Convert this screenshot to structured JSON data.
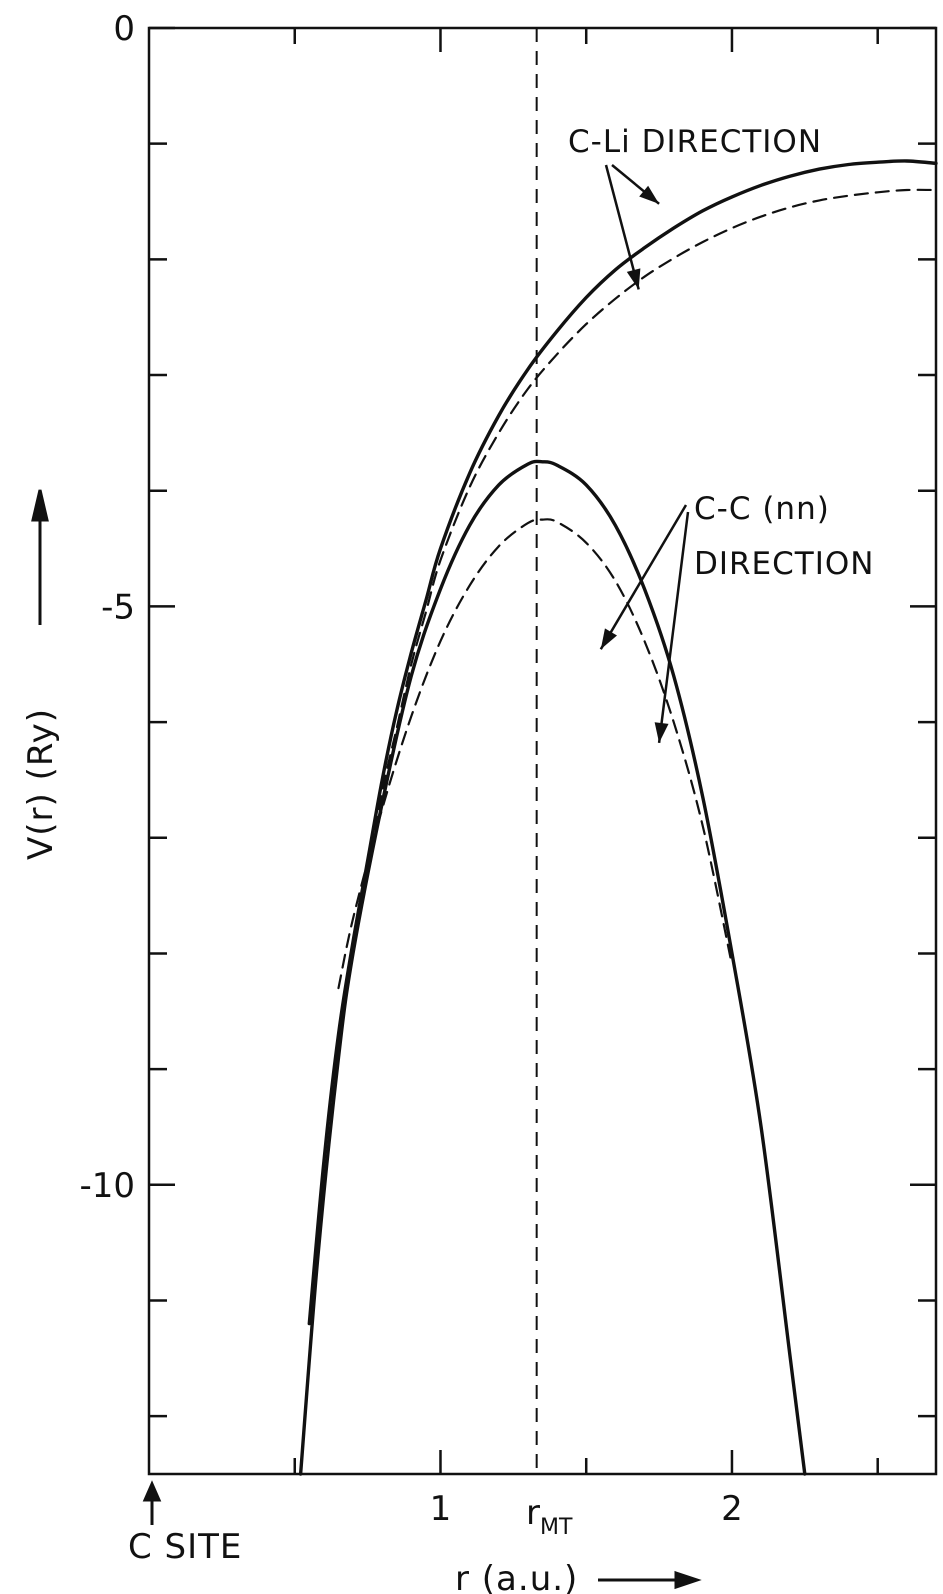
{
  "chart_data": {
    "type": "line",
    "title": "",
    "xlabel": "r (a.u.)",
    "ylabel": "V(r)    (Ry)",
    "xlim": [
      0,
      2.7
    ],
    "ylim": [
      -12.5,
      0
    ],
    "x_ticks": [
      1,
      2
    ],
    "x_tick_labels": [
      "1",
      "2"
    ],
    "x_minor_ticks": [
      0.5,
      1.5,
      2.5
    ],
    "y_ticks": [
      0,
      -5,
      -10
    ],
    "y_tick_labels": [
      "0",
      "-5",
      "-10"
    ],
    "y_minor_ticks": [
      -1,
      -2,
      -3,
      -4,
      -6,
      -7,
      -8,
      -9,
      -11,
      -12
    ],
    "rmt": 1.33,
    "rmt_label": "r",
    "rmt_label_sub": "MT",
    "origin_label": "C SITE",
    "grid": false,
    "annotations": [
      {
        "text": "C-Li  DIRECTION",
        "lines": [
          "C-Li  DIRECTION"
        ],
        "arrows_to": [
          [
            1.75,
            -1.52
          ],
          [
            1.68,
            -2.26
          ]
        ]
      },
      {
        "text": "C-C (nn) DIRECTION",
        "lines": [
          "C-C (nn)",
          "DIRECTION"
        ],
        "arrows_to": [
          [
            1.55,
            -5.37
          ],
          [
            1.75,
            -6.18
          ]
        ]
      }
    ],
    "series": [
      {
        "style": "solid",
        "group": "C-Li",
        "x": [
          0.55,
          0.6,
          0.65,
          0.7,
          0.75,
          0.8,
          0.85,
          0.9,
          0.95,
          1.0,
          1.1,
          1.2,
          1.3,
          1.4,
          1.5,
          1.6,
          1.7,
          1.8,
          1.9,
          2.0,
          2.1,
          2.2,
          2.3,
          2.4,
          2.5,
          2.6,
          2.7
        ],
        "y": [
          -11.2,
          -9.8,
          -8.7,
          -7.9,
          -7.2,
          -6.5,
          -5.9,
          -5.4,
          -4.95,
          -4.5,
          -3.85,
          -3.35,
          -2.95,
          -2.62,
          -2.33,
          -2.09,
          -1.9,
          -1.73,
          -1.58,
          -1.46,
          -1.36,
          -1.28,
          -1.22,
          -1.18,
          -1.16,
          -1.15,
          -1.17
        ]
      },
      {
        "style": "dashed",
        "group": "C-Li",
        "x": [
          0.6,
          0.65,
          0.7,
          0.75,
          0.8,
          0.85,
          0.9,
          0.95,
          1.0,
          1.1,
          1.2,
          1.3,
          1.4,
          1.5,
          1.6,
          1.7,
          1.8,
          1.9,
          2.0,
          2.1,
          2.2,
          2.3,
          2.4,
          2.5,
          2.6,
          2.7
        ],
        "y": [
          -9.8,
          -8.8,
          -8.0,
          -7.3,
          -6.6,
          -6.05,
          -5.5,
          -5.05,
          -4.6,
          -3.97,
          -3.5,
          -3.12,
          -2.82,
          -2.56,
          -2.34,
          -2.15,
          -1.99,
          -1.85,
          -1.73,
          -1.63,
          -1.55,
          -1.49,
          -1.45,
          -1.42,
          -1.4,
          -1.4
        ]
      },
      {
        "style": "solid",
        "group": "C-C (nn)",
        "x": [
          0.52,
          0.58,
          0.65,
          0.7,
          0.8,
          0.9,
          1.0,
          1.1,
          1.2,
          1.3,
          1.35,
          1.4,
          1.5,
          1.6,
          1.7,
          1.8,
          1.9,
          2.0,
          2.1,
          2.2,
          2.25
        ],
        "y": [
          -12.5,
          -10.6,
          -8.9,
          -8.0,
          -6.7,
          -5.6,
          -4.85,
          -4.3,
          -3.95,
          -3.77,
          -3.75,
          -3.78,
          -3.95,
          -4.3,
          -4.85,
          -5.6,
          -6.65,
          -8.0,
          -9.5,
          -11.5,
          -12.5
        ]
      },
      {
        "style": "dashed",
        "group": "C-C (nn)",
        "x": [
          0.65,
          0.7,
          0.8,
          0.9,
          1.0,
          1.1,
          1.2,
          1.3,
          1.35,
          1.4,
          1.5,
          1.6,
          1.7,
          1.8,
          1.9,
          2.0
        ],
        "y": [
          -8.3,
          -7.7,
          -6.75,
          -5.95,
          -5.3,
          -4.82,
          -4.48,
          -4.28,
          -4.25,
          -4.27,
          -4.45,
          -4.78,
          -5.3,
          -6.0,
          -6.9,
          -8.1
        ]
      }
    ]
  }
}
